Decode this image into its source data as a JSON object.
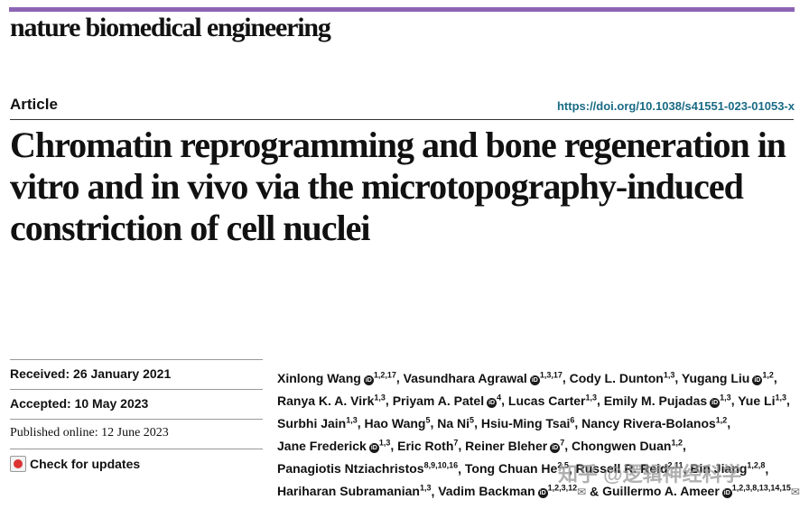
{
  "journal": "nature biomedical engineering",
  "article_type": "Article",
  "doi": "https://doi.org/10.1038/s41551-023-01053-x",
  "title": "Chromatin reprogramming and bone regeneration in vitro and in vivo via the microtopography-induced constriction of cell nuclei",
  "dates": {
    "received_label": "Received:",
    "received": "26 January 2021",
    "accepted_label": "Accepted:",
    "accepted": "10 May 2023",
    "published_label": "Published online:",
    "published": "12 June 2023"
  },
  "check_updates": "Check for updates",
  "orcid_glyph": "iD",
  "authors": [
    {
      "name": "Xinlong Wang",
      "orcid": true,
      "aff": "1,2,17",
      "sep": ", "
    },
    {
      "name": "Vasundhara Agrawal",
      "orcid": true,
      "aff": "1,3,17",
      "sep": ", "
    },
    {
      "name": "Cody L. Dunton",
      "orcid": false,
      "aff": "1,3",
      "sep": ", "
    },
    {
      "name": "Yugang Liu",
      "orcid": true,
      "aff": "1,2",
      "sep": ", "
    },
    {
      "name": "Ranya K. A. Virk",
      "orcid": false,
      "aff": "1,3",
      "sep": ", "
    },
    {
      "name": "Priyam A. Patel",
      "orcid": true,
      "aff": "4",
      "sep": ", "
    },
    {
      "name": "Lucas Carter",
      "orcid": false,
      "aff": "1,3",
      "sep": ", "
    },
    {
      "name": "Emily M. Pujadas",
      "orcid": true,
      "aff": "1,3",
      "sep": ", "
    },
    {
      "name": "Yue Li",
      "orcid": false,
      "aff": "1,3",
      "sep": ", "
    },
    {
      "name": "Surbhi Jain",
      "orcid": false,
      "aff": "1,3",
      "sep": ", "
    },
    {
      "name": "Hao Wang",
      "orcid": false,
      "aff": "5",
      "sep": ", "
    },
    {
      "name": "Na Ni",
      "orcid": false,
      "aff": "5",
      "sep": ", "
    },
    {
      "name": "Hsiu-Ming Tsai",
      "orcid": false,
      "aff": "6",
      "sep": ", "
    },
    {
      "name": "Nancy Rivera-Bolanos",
      "orcid": false,
      "aff": "1,2",
      "sep": ", "
    },
    {
      "name": "Jane Frederick",
      "orcid": true,
      "aff": "1,3",
      "sep": ", "
    },
    {
      "name": "Eric Roth",
      "orcid": false,
      "aff": "7",
      "sep": ", "
    },
    {
      "name": "Reiner Bleher",
      "orcid": true,
      "aff": "7",
      "sep": ", "
    },
    {
      "name": "Chongwen Duan",
      "orcid": false,
      "aff": "1,2",
      "sep": ", "
    },
    {
      "name": "Panagiotis Ntziachristos",
      "orcid": false,
      "aff": "8,9,10,16",
      "sep": ", "
    },
    {
      "name": "Tong Chuan He",
      "orcid": false,
      "aff": "2,5",
      "sep": ", "
    },
    {
      "name": "Russell R. Reid",
      "orcid": false,
      "aff": "2,11",
      "sep": ", "
    },
    {
      "name": "Bin Jiang",
      "orcid": false,
      "aff": "1,2,8",
      "sep": ", "
    },
    {
      "name": "Hariharan Subramanian",
      "orcid": false,
      "aff": "1,3",
      "sep": ", "
    },
    {
      "name": "Vadim Backman",
      "orcid": true,
      "aff": "1,2,3,12",
      "sep": " & ",
      "email": true
    },
    {
      "name": "Guillermo A. Ameer",
      "orcid": true,
      "aff": "1,2,3,8,13,14,15",
      "sep": "",
      "email": true
    }
  ],
  "watermark": "知乎 @逻辑神经科学"
}
